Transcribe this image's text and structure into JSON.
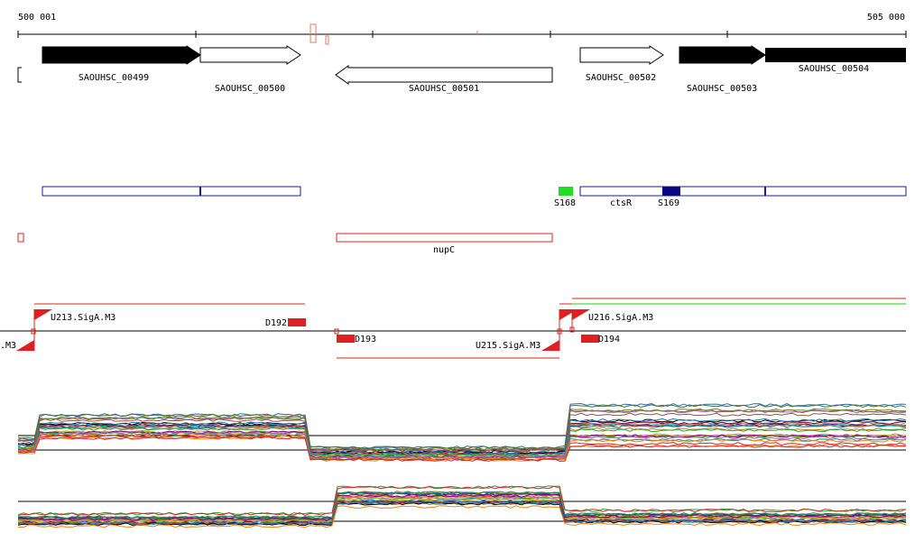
{
  "coords": {
    "start": "500 001",
    "end": "505 000"
  },
  "colors": {
    "gene_fill": "#000000",
    "utr": "#1b1b9f",
    "nup": "#e02020",
    "green": "#22dd22",
    "navy": "#0a0a80"
  },
  "genes": [
    {
      "label": "SAOUHSC_00499",
      "strand": "+",
      "filled": true
    },
    {
      "label": "SAOUHSC_00500",
      "strand": "+",
      "filled": false
    },
    {
      "label": "SAOUHSC_00501",
      "strand": "-",
      "filled": false
    },
    {
      "label": "SAOUHSC_00502",
      "strand": "+",
      "filled": false
    },
    {
      "label": "SAOUHSC_00503",
      "strand": "+",
      "filled": true
    },
    {
      "label": "SAOUHSC_00504",
      "strand": "+",
      "filled": true
    }
  ],
  "features": {
    "s168": "S168",
    "ctsr": "ctsR",
    "s169": "S169",
    "nupc": "nupC"
  },
  "promoters": {
    "u213": "U213.SigA.M3",
    "d192": "D192",
    "d193": "D193",
    "u215": "U215.SigA.M3",
    "d194": "D194",
    "overlap": "U216.SigA.M3",
    "left_cut": ".M3"
  }
}
